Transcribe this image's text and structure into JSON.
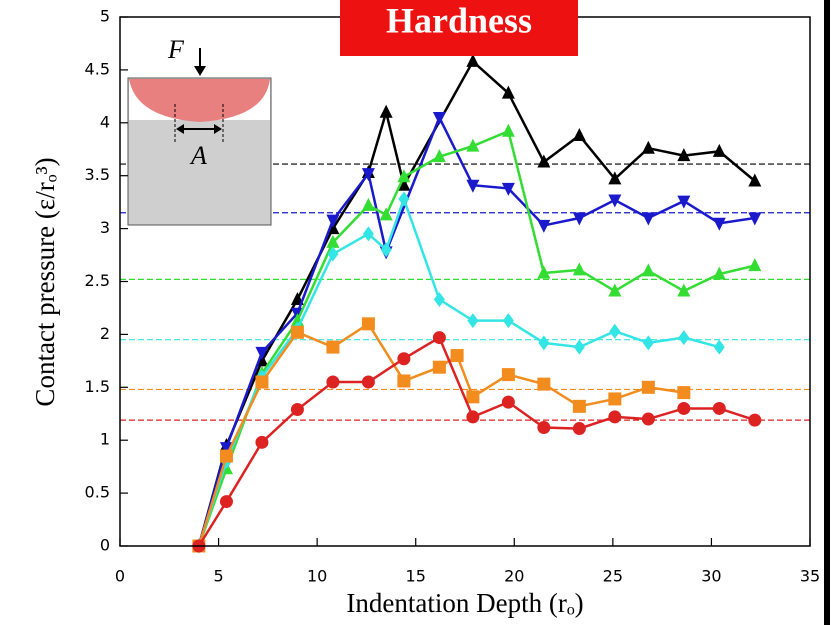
{
  "chart_data": {
    "type": "line",
    "title": "Hardness",
    "x_label": "Indentation Depth (rₒ)",
    "y_label": "Contact pressure (ε/rₒ³)",
    "inset_labels": [
      "F",
      "A"
    ],
    "xlim": [
      0,
      35
    ],
    "xticks": [
      0,
      5,
      10,
      15,
      20,
      25,
      30,
      35
    ],
    "ylim": [
      0,
      5
    ],
    "yticks": [
      0,
      0.5,
      1,
      1.5,
      2,
      2.5,
      3,
      3.5,
      4,
      4.5,
      5
    ],
    "series": [
      {
        "color": "#000000",
        "marker": "triangle-up",
        "x": [
          4,
          5.4,
          7.2,
          9,
          10.8,
          12.6,
          13.5,
          14.4,
          17.9,
          19.7,
          21.5,
          23.3,
          25.1,
          26.8,
          28.6,
          30.4,
          32.2
        ],
        "values": [
          0,
          0.95,
          1.75,
          2.33,
          3.0,
          3.53,
          4.1,
          3.41,
          4.58,
          4.28,
          3.63,
          3.88,
          3.47,
          3.76,
          3.69,
          3.73,
          3.45
        ]
      },
      {
        "color": "#1a1acc",
        "marker": "triangle-down",
        "x": [
          4,
          5.4,
          7.2,
          9,
          10.8,
          12.6,
          13.5,
          16.2,
          17.9,
          19.7,
          21.5,
          23.3,
          25.1,
          26.8,
          28.6,
          30.4,
          32.2
        ],
        "values": [
          0,
          0.93,
          1.83,
          2.2,
          3.08,
          3.52,
          2.78,
          4.05,
          3.41,
          3.38,
          3.03,
          3.1,
          3.27,
          3.1,
          3.26,
          3.05,
          3.1
        ]
      },
      {
        "color": "#33dd33",
        "marker": "triangle-up",
        "x": [
          4,
          5.4,
          7.2,
          9,
          10.8,
          12.6,
          13.5,
          14.4,
          16.2,
          17.9,
          19.7,
          21.5,
          23.3,
          25.1,
          26.8,
          28.6,
          30.4,
          32.2
        ],
        "values": [
          0,
          0.73,
          1.63,
          2.13,
          2.87,
          3.22,
          3.13,
          3.49,
          3.68,
          3.78,
          3.92,
          2.58,
          2.61,
          2.41,
          2.6,
          2.41,
          2.57,
          2.65
        ]
      },
      {
        "color": "#33e5e5",
        "marker": "diamond",
        "x": [
          4,
          5.4,
          7.2,
          9,
          10.8,
          12.6,
          13.5,
          14.4,
          16.2,
          17.9,
          19.7,
          21.5,
          23.3,
          25.1,
          26.8,
          28.6,
          30.4
        ],
        "values": [
          0,
          0.8,
          1.6,
          2.05,
          2.76,
          2.95,
          2.8,
          3.28,
          2.33,
          2.13,
          2.13,
          1.92,
          1.88,
          2.03,
          1.92,
          1.97,
          1.88
        ]
      },
      {
        "color": "#f28c1e",
        "marker": "square",
        "x": [
          4,
          5.4,
          7.2,
          9,
          10.8,
          12.6,
          14.4,
          16.2,
          17.1,
          17.9,
          19.7,
          21.5,
          23.3,
          25.1,
          26.8,
          28.6
        ],
        "values": [
          0,
          0.85,
          1.55,
          2.02,
          1.88,
          2.1,
          1.56,
          1.69,
          1.8,
          1.41,
          1.62,
          1.53,
          1.32,
          1.39,
          1.5,
          1.45
        ]
      },
      {
        "color": "#dd2222",
        "marker": "circle",
        "x": [
          4,
          5.4,
          7.2,
          9,
          10.8,
          12.6,
          14.4,
          16.2,
          17.9,
          19.7,
          21.5,
          23.3,
          25.1,
          26.8,
          28.6,
          30.4,
          32.2
        ],
        "values": [
          0,
          0.42,
          0.98,
          1.29,
          1.55,
          1.55,
          1.77,
          1.97,
          1.22,
          1.36,
          1.12,
          1.11,
          1.22,
          1.2,
          1.3,
          1.3,
          1.19
        ]
      }
    ],
    "reference_lines": [
      {
        "value": 3.61,
        "color": "#000000"
      },
      {
        "value": 3.15,
        "color": "#1a1acc"
      },
      {
        "value": 2.52,
        "color": "#33dd33"
      },
      {
        "value": 1.95,
        "color": "#33e5e5"
      },
      {
        "value": 1.48,
        "color": "#f28c1e"
      },
      {
        "value": 1.19,
        "color": "#dd2222"
      }
    ]
  }
}
